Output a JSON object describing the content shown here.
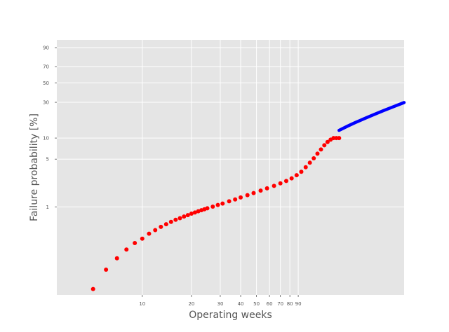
{
  "chart_data": {
    "type": "scatter",
    "title": "",
    "xlabel": "Operating weeks",
    "ylabel": "Failure probability [%]",
    "xscale": "log",
    "yscale": "weibull-probability",
    "xlim": [
      3,
      400
    ],
    "ylim": [
      0.05,
      95
    ],
    "grid": true,
    "background": "#E5E5E5",
    "grid_color": "#FFFFFF",
    "x_ticks": [
      10,
      20,
      30,
      40,
      50,
      60,
      70,
      80,
      90
    ],
    "x_tick_labels": [
      "10",
      "20",
      "30",
      "40",
      "50",
      "60",
      "70",
      "80",
      "90"
    ],
    "y_ticks": [
      1,
      5,
      10,
      30,
      50,
      70,
      90
    ],
    "y_tick_labels": [
      "1",
      "5",
      "10",
      "30",
      "50",
      "70",
      "90"
    ],
    "series": [
      {
        "color": "#FF0000",
        "marker": "circle",
        "points": [
          [
            5,
            0.061
          ],
          [
            6,
            0.118
          ],
          [
            7,
            0.174
          ],
          [
            8,
            0.235
          ],
          [
            9,
            0.293
          ],
          [
            10,
            0.34
          ],
          [
            11,
            0.403
          ],
          [
            12,
            0.455
          ],
          [
            13,
            0.508
          ],
          [
            14,
            0.556
          ],
          [
            15,
            0.602
          ],
          [
            16,
            0.646
          ],
          [
            17,
            0.682
          ],
          [
            18,
            0.721
          ],
          [
            19,
            0.758
          ],
          [
            20,
            0.796
          ],
          [
            21,
            0.827
          ],
          [
            22,
            0.862
          ],
          [
            23,
            0.894
          ],
          [
            24,
            0.925
          ],
          [
            25,
            0.954
          ],
          [
            27,
            1.01
          ],
          [
            29,
            1.07
          ],
          [
            31,
            1.12
          ],
          [
            34,
            1.21
          ],
          [
            37,
            1.29
          ],
          [
            40,
            1.38
          ],
          [
            44,
            1.49
          ],
          [
            48,
            1.6
          ],
          [
            53,
            1.74
          ],
          [
            58,
            1.88
          ],
          [
            64,
            2.04
          ],
          [
            70,
            2.22
          ],
          [
            76,
            2.41
          ],
          [
            82,
            2.63
          ],
          [
            88,
            2.92
          ],
          [
            94,
            3.28
          ],
          [
            100,
            3.82
          ],
          [
            106,
            4.44
          ],
          [
            112,
            5.15
          ],
          [
            118,
            6.0
          ],
          [
            124,
            6.9
          ],
          [
            130,
            7.9
          ],
          [
            136,
            8.8
          ],
          [
            142,
            9.5
          ],
          [
            148,
            10.0
          ],
          [
            154,
            10.0
          ],
          [
            160,
            10.0
          ]
        ]
      },
      {
        "color": "#0000FF",
        "marker": "line",
        "points": [
          [
            160,
            12.8
          ],
          [
            180,
            14.6
          ],
          [
            200,
            16.3
          ],
          [
            230,
            18.6
          ],
          [
            260,
            20.8
          ],
          [
            300,
            23.6
          ],
          [
            350,
            26.8
          ],
          [
            400,
            29.8
          ]
        ]
      }
    ]
  }
}
